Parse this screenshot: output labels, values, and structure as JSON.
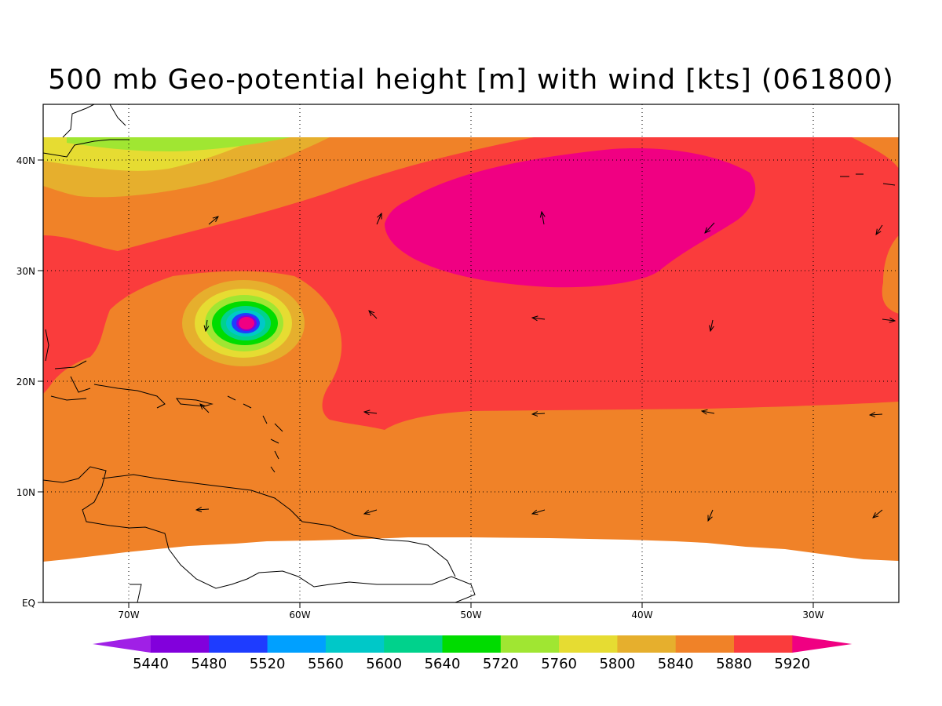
{
  "title": "500 mb Geo-potential height [m] with wind [kts] (061800)",
  "lon_labels": [
    "70W",
    "60W",
    "50W",
    "40W",
    "30W"
  ],
  "lat_labels": [
    "40N",
    "30N",
    "20N",
    "10N",
    "EQ"
  ],
  "colorbar": {
    "labels": [
      "5440",
      "5480",
      "5520",
      "5560",
      "5600",
      "5640",
      "5720",
      "5760",
      "5800",
      "5840",
      "5880",
      "5920"
    ],
    "colors": [
      "#a020e6",
      "#8200dc",
      "#1e3cff",
      "#00a0ff",
      "#00c8c8",
      "#00d28c",
      "#00dc00",
      "#a0e632",
      "#e6dc32",
      "#e6af2d",
      "#f08228",
      "#fa3c3c",
      "#f00082"
    ]
  },
  "colors": {
    "c5880": "#f08228",
    "c5920": "#fa3c3c",
    "c5960": "#f00082",
    "c5840": "#e6af2d",
    "c5800": "#e6dc32",
    "c5760": "#a0e632",
    "coast": "#000000"
  }
}
